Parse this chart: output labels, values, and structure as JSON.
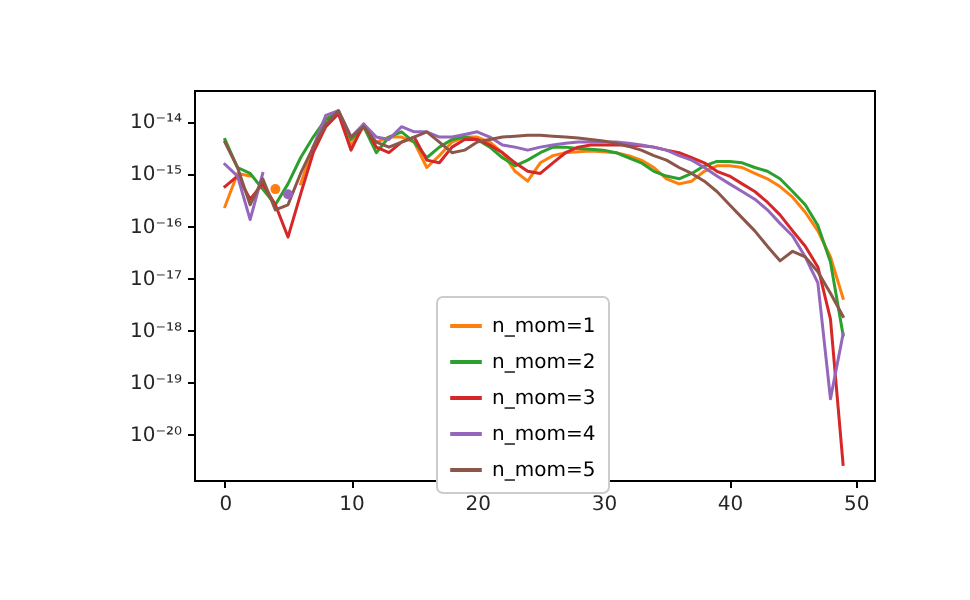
{
  "chart_data": {
    "type": "line",
    "x": [
      0,
      1,
      2,
      3,
      4,
      5,
      6,
      7,
      8,
      9,
      10,
      11,
      12,
      13,
      14,
      15,
      16,
      17,
      18,
      19,
      20,
      21,
      22,
      23,
      24,
      25,
      26,
      27,
      28,
      29,
      30,
      31,
      32,
      33,
      34,
      35,
      36,
      37,
      38,
      39,
      40,
      41,
      42,
      43,
      44,
      45,
      46,
      47,
      48,
      49
    ],
    "series": [
      {
        "name": "n_mom=1",
        "color": "#ff7f0e",
        "values": [
          2.3e-16,
          1e-15,
          8.9e-16,
          null,
          5e-16,
          null,
          6.3e-16,
          3.2e-15,
          1.1e-14,
          1.6e-14,
          3.5e-15,
          7.9e-15,
          4e-15,
          5e-15,
          5e-15,
          4e-15,
          1.3e-15,
          2.2e-15,
          4e-15,
          5e-15,
          5e-15,
          4e-15,
          2.5e-15,
          1.1e-15,
          7.1e-16,
          1.6e-15,
          2.2e-15,
          2.5e-15,
          2.6e-15,
          2.7e-15,
          2.6e-15,
          2.5e-15,
          2.2e-15,
          1.8e-15,
          1.3e-15,
          7.9e-16,
          6.3e-16,
          7.1e-16,
          1.1e-15,
          1.4e-15,
          1.4e-15,
          1.3e-15,
          1e-15,
          7.9e-16,
          5.6e-16,
          3.5e-16,
          1.8e-16,
          7.9e-17,
          2.5e-17,
          4e-18
        ]
      },
      {
        "name": "n_mom=2",
        "color": "#2ca02c",
        "values": [
          4.5e-15,
          1.3e-15,
          1e-15,
          5e-16,
          2.5e-16,
          6.3e-16,
          2e-15,
          5e-15,
          1.1e-14,
          1.4e-14,
          4.5e-15,
          7.9e-15,
          2.5e-15,
          5e-15,
          6.3e-15,
          4e-15,
          2e-15,
          3.2e-15,
          4.5e-15,
          5e-15,
          4.5e-15,
          3.2e-15,
          2e-15,
          1.4e-15,
          1.8e-15,
          2.5e-15,
          3.2e-15,
          3.2e-15,
          3e-15,
          2.9e-15,
          2.8e-15,
          2.5e-15,
          2e-15,
          1.6e-15,
          1.1e-15,
          8.9e-16,
          7.9e-16,
          1e-15,
          1.4e-15,
          1.7e-15,
          1.7e-15,
          1.6e-15,
          1.3e-15,
          1.1e-15,
          7.9e-16,
          4.5e-16,
          2.5e-16,
          1e-16,
          2e-17,
          7.9e-19
        ]
      },
      {
        "name": "n_mom=3",
        "color": "#d62728",
        "values": [
          5.6e-16,
          8.9e-16,
          3.2e-16,
          6.3e-16,
          2.5e-16,
          6e-17,
          4e-16,
          2.5e-15,
          7.9e-15,
          1.4e-14,
          2.8e-15,
          8.9e-15,
          3.2e-15,
          2.5e-15,
          4e-15,
          5e-15,
          1.8e-15,
          1.6e-15,
          3.2e-15,
          4.5e-15,
          4.5e-15,
          3.5e-15,
          2.5e-15,
          1.6e-15,
          1.1e-15,
          1e-15,
          1.6e-15,
          2.5e-15,
          3.2e-15,
          3.5e-15,
          3.5e-15,
          3.5e-15,
          3.5e-15,
          3.4e-15,
          3.2e-15,
          2.8e-15,
          2.5e-15,
          2e-15,
          1.6e-15,
          1.1e-15,
          8.9e-16,
          6.3e-16,
          4.5e-16,
          2.8e-16,
          1.6e-16,
          7.9e-17,
          4e-17,
          1.6e-17,
          1.6e-18,
          2.6e-21
        ]
      },
      {
        "name": "n_mom=4",
        "color": "#9467bd",
        "values": [
          1.5e-15,
          8.9e-16,
          1.3e-16,
          1e-15,
          null,
          4e-16,
          null,
          3.2e-15,
          1.3e-14,
          1.6e-14,
          5e-15,
          8.9e-15,
          5e-15,
          4.5e-15,
          7.9e-15,
          6.3e-15,
          6.3e-15,
          5e-15,
          5e-15,
          5.6e-15,
          6.3e-15,
          5e-15,
          3.5e-15,
          3.2e-15,
          2.8e-15,
          3.2e-15,
          3.5e-15,
          3.8e-15,
          4e-15,
          4e-15,
          4e-15,
          4e-15,
          3.8e-15,
          3.5e-15,
          3.2e-15,
          2.8e-15,
          2.2e-15,
          1.8e-15,
          1.3e-15,
          8.9e-16,
          6.3e-16,
          4.5e-16,
          3.2e-16,
          2e-16,
          1.1e-16,
          6.3e-17,
          2.5e-17,
          7.9e-18,
          4.7e-20,
          8.3e-19
        ]
      },
      {
        "name": "n_mom=5",
        "color": "#8c564b",
        "values": [
          4e-15,
          1.3e-15,
          2.5e-16,
          7.9e-16,
          2e-16,
          2.5e-16,
          1e-15,
          3.2e-15,
          8.9e-15,
          1.6e-14,
          5e-15,
          7.9e-15,
          4e-15,
          3.2e-15,
          4e-15,
          5e-15,
          6.3e-15,
          4e-15,
          2.5e-15,
          2.8e-15,
          4e-15,
          4.5e-15,
          5e-15,
          5.2e-15,
          5.4e-15,
          5.4e-15,
          5.2e-15,
          5e-15,
          4.8e-15,
          4.5e-15,
          4.2e-15,
          3.8e-15,
          3.3e-15,
          2.8e-15,
          2.2e-15,
          1.8e-15,
          1.3e-15,
          1e-15,
          7.1e-16,
          4.5e-16,
          2.5e-16,
          1.4e-16,
          7.9e-17,
          4e-17,
          2.1e-17,
          3.2e-17,
          2.5e-17,
          1.3e-17,
          5e-18,
          1.8e-18
        ]
      }
    ],
    "xlim": [
      -2.45,
      51.45
    ],
    "xticks": [
      0,
      10,
      20,
      30,
      40,
      50
    ],
    "ylim": [
      1.3e-21,
      4e-14
    ],
    "log": true,
    "yticks": [
      {
        "value": 1e-20,
        "label": "10⁻²⁰"
      },
      {
        "value": 1e-19,
        "label": "10⁻¹⁹"
      },
      {
        "value": 1e-18,
        "label": "10⁻¹⁸"
      },
      {
        "value": 1e-17,
        "label": "10⁻¹⁷"
      },
      {
        "value": 1e-16,
        "label": "10⁻¹⁶"
      },
      {
        "value": 1e-15,
        "label": "10⁻¹⁵"
      },
      {
        "value": 1e-14,
        "label": "10⁻¹⁴"
      }
    ],
    "legend": "bottom",
    "grid": false
  }
}
